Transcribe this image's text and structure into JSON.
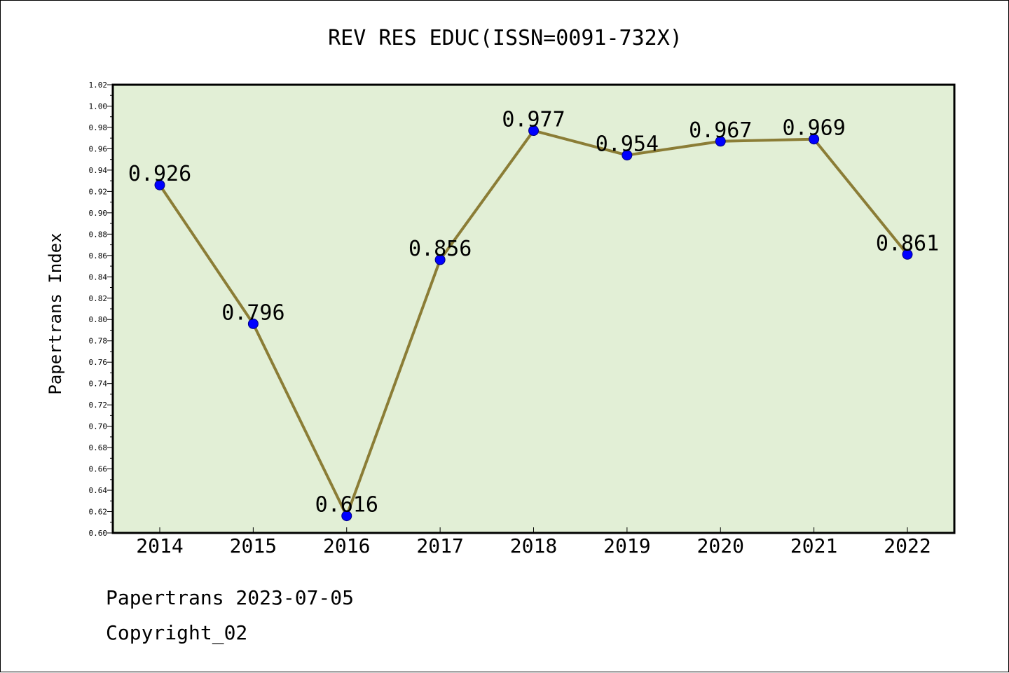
{
  "chart_data": {
    "type": "line",
    "title": "REV RES EDUC(ISSN=0091-732X)",
    "ylabel": "Papertrans Index",
    "xlabel": "",
    "categories": [
      "2014",
      "2015",
      "2016",
      "2017",
      "2018",
      "2019",
      "2020",
      "2021",
      "2022"
    ],
    "values": [
      0.926,
      0.796,
      0.616,
      0.856,
      0.977,
      0.954,
      0.967,
      0.969,
      0.861
    ],
    "data_labels": [
      "0.926",
      "0.796",
      "0.616",
      "0.856",
      "0.977",
      "0.954",
      "0.967",
      "0.969",
      "0.861"
    ],
    "ylim": [
      0.6,
      1.02
    ],
    "yticks": [
      "0.60",
      "0.62",
      "0.64",
      "0.66",
      "0.68",
      "0.70",
      "0.72",
      "0.74",
      "0.76",
      "0.78",
      "0.80",
      "0.82",
      "0.84",
      "0.86",
      "0.88",
      "0.90",
      "0.92",
      "0.94",
      "0.96",
      "0.98",
      "1.00",
      "1.02"
    ],
    "grid": false,
    "colors": {
      "plot_background": "#e2efd6",
      "line": "#8b7d36",
      "marker_fill": "#0000ff",
      "marker_edge": "#000080"
    }
  },
  "footer": {
    "line1": "Papertrans 2023-07-05",
    "line2": "Copyright_02"
  }
}
